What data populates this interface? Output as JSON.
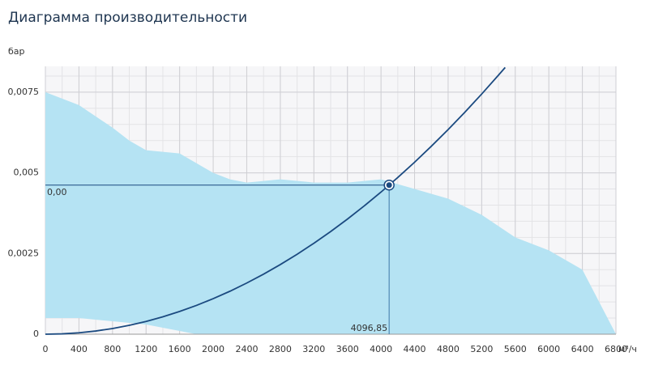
{
  "chart_data": {
    "type": "performance",
    "title": "Диаграмма производительности",
    "y_label": "бар",
    "x_label": "м³/ч",
    "xlim": [
      0,
      6800
    ],
    "ylim": [
      0,
      0.0083
    ],
    "xticks": [
      0,
      400,
      800,
      1200,
      1600,
      2000,
      2400,
      2800,
      3200,
      3600,
      4000,
      4400,
      4800,
      5200,
      5600,
      6000,
      6400,
      6800
    ],
    "yticks": [
      0,
      {
        "value": 0.0025,
        "label": "0,0025"
      },
      {
        "value": 0.005,
        "label": "0,005"
      },
      {
        "value": 0.0075,
        "label": "0,0075"
      }
    ],
    "grid": true,
    "area": {
      "color": "#b5e3f3",
      "x": [
        0,
        400,
        800,
        1000,
        1200,
        1600,
        1800,
        2000,
        2200,
        2400,
        2800,
        3200,
        3600,
        4000,
        4400,
        4800,
        5200,
        5600,
        6000,
        6400,
        6600,
        6800
      ],
      "upper": [
        0.0075,
        0.0071,
        0.0064,
        0.006,
        0.0057,
        0.0056,
        0.0053,
        0.005,
        0.0048,
        0.0047,
        0.0048,
        0.0047,
        0.0047,
        0.0048,
        0.0045,
        0.0042,
        0.0037,
        0.003,
        0.0026,
        0.002,
        0.001,
        0
      ],
      "lower": [
        0.0005,
        0.0005,
        0.0004,
        0.00035,
        0.0003,
        0.0001,
        0,
        0,
        0,
        0,
        0,
        0,
        0,
        0,
        0,
        0,
        0,
        0,
        0,
        0,
        0,
        0
      ]
    },
    "curve": {
      "color": "#1b4a80",
      "x": [
        0,
        200,
        400,
        600,
        800,
        1000,
        1200,
        1400,
        1600,
        1800,
        2000,
        2200,
        2400,
        2600,
        2800,
        3000,
        3200,
        3400,
        3600,
        3800,
        4000,
        4200,
        4400,
        4600,
        4800,
        5000,
        5200,
        5400,
        5480
      ],
      "values": [
        0,
        1.1e-05,
        4.4e-05,
        9.91e-05,
        0.000176,
        0.000275,
        0.000396,
        0.00054,
        0.000705,
        0.000892,
        0.001101,
        0.001332,
        0.001586,
        0.001861,
        0.002158,
        0.002477,
        0.002819,
        0.003182,
        0.003567,
        0.003975,
        0.004404,
        0.004856,
        0.005329,
        0.005825,
        0.006342,
        0.006881,
        0.007443,
        0.008027,
        0.008266
      ]
    },
    "operating_point": {
      "x": 4096.85,
      "y": 0.00462,
      "x_label": "4096,85",
      "y_label": "0,00",
      "color": "#1b4a80"
    }
  }
}
